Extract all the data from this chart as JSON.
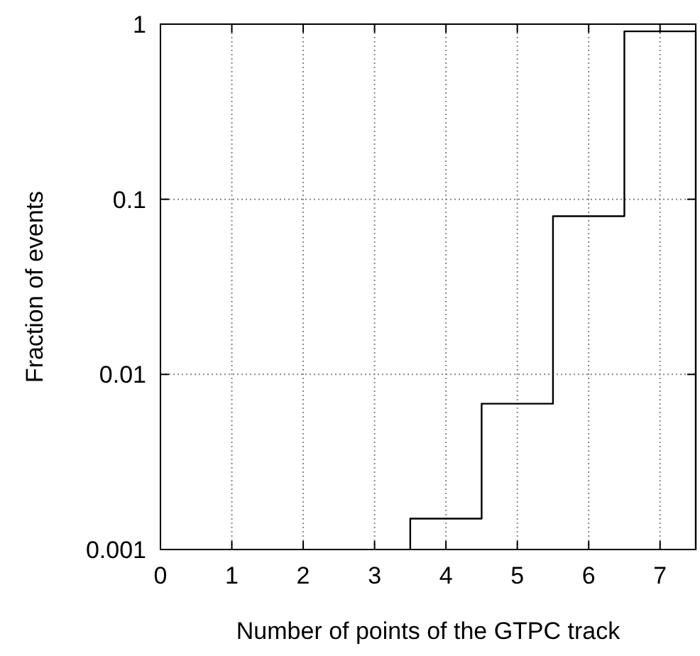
{
  "chart_data": {
    "type": "histogram",
    "xlabel": "Number of points of the GTPC track",
    "ylabel": "Fraction of events",
    "bins": [
      3.5,
      4.5,
      5.5,
      6.5,
      7.5
    ],
    "values": [
      0.0015,
      0.0068,
      0.08,
      0.91
    ],
    "color": "#000000",
    "xlim": [
      0,
      7.5
    ],
    "xticks": [
      0,
      1,
      2,
      3,
      4,
      5,
      6,
      7
    ],
    "ylim": [
      0.001,
      1
    ],
    "yticks": [
      0.001,
      0.01,
      0.1,
      1
    ],
    "log": true,
    "grid": true
  }
}
